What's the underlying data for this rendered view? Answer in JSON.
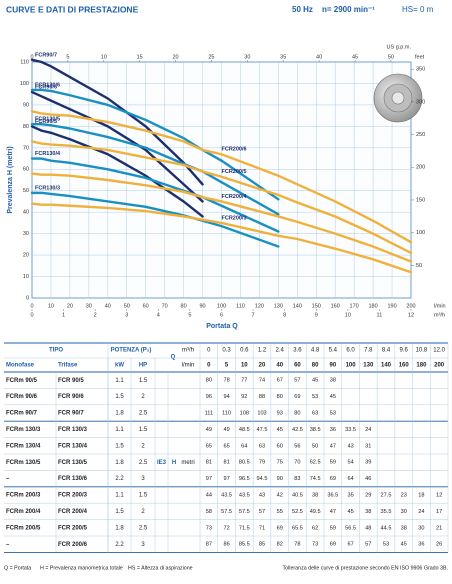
{
  "header": {
    "title": "CURVE E DATI DI PRESTAZIONE",
    "frequency": "50 Hz",
    "speed": "n= 2900 min⁻¹",
    "suction": "HS= 0 m"
  },
  "chart": {
    "type": "line",
    "y_label": "Prevalenza H (metri)",
    "x_label": "Portata Q",
    "x_unit": "l/min",
    "x2_unit": "m³/h",
    "top_unit": "US g.p.m.",
    "right_unit": "feet",
    "xlim": [
      0,
      200
    ],
    "xticks": [
      0,
      10,
      20,
      30,
      40,
      50,
      60,
      70,
      80,
      90,
      100,
      110,
      120,
      130,
      140,
      150,
      160,
      170,
      180,
      190,
      200
    ],
    "ylim": [
      0,
      110
    ],
    "yticks": [
      0,
      10,
      20,
      30,
      40,
      50,
      60,
      70,
      80,
      90,
      100,
      110
    ],
    "x2lim": [
      0,
      12
    ],
    "x2ticks": [
      0,
      1,
      2,
      3,
      4,
      5,
      6,
      7,
      8,
      9,
      10,
      11,
      12
    ],
    "toplim": [
      0,
      52.8
    ],
    "topticks": [
      0,
      5,
      10,
      15,
      20,
      25,
      30,
      35,
      40,
      45,
      50
    ],
    "y2lim": [
      0,
      361
    ],
    "y2ticks": [
      50,
      100,
      150,
      200,
      250,
      300,
      350
    ],
    "grid": true
  },
  "table": {
    "tipo": "TIPO",
    "potenza": "POTENZA (P₂)",
    "mono": "Monofase",
    "tri": "Trifase",
    "kw": "kW",
    "hp": "HP",
    "q": "Q",
    "q_m3h_unit": "m³/h",
    "q_lmin_unit": "l/min",
    "ie3": "IE3",
    "h": "H",
    "h_unit": "metri",
    "q_m3h": [
      0,
      0.3,
      0.6,
      1.2,
      2.4,
      3.6,
      4.8,
      5.4,
      {
        "value": 6,
        "label": "6.0"
      },
      7.8,
      8.4,
      9.6,
      10.8,
      {
        "value": 12,
        "label": "12.0"
      }
    ],
    "q_lmin": [
      0,
      5,
      10,
      20,
      40,
      60,
      80,
      90,
      100,
      130,
      140,
      160,
      180,
      200
    ],
    "rows": [
      {
        "mono": "FCRm 90/5",
        "tri": "FCR 90/5",
        "kw": 1.1,
        "hp": 1.5,
        "h": [
          80,
          78,
          77,
          74,
          67,
          57,
          45,
          38
        ],
        "curve": "FCR90/5",
        "color": "#1c2f6e"
      },
      {
        "mono": "FCRm 90/6",
        "tri": "FCR 90/6",
        "kw": 1.5,
        "hp": 2,
        "h": [
          96,
          94,
          92,
          88,
          80,
          69,
          53,
          45
        ],
        "curve": "FCR90/6",
        "color": "#1c2f6e"
      },
      {
        "mono": "FCRm 90/7",
        "tri": "FCR 90/7",
        "kw": 1.8,
        "hp": 2.5,
        "h": [
          111,
          110,
          108,
          103,
          93,
          80,
          63,
          53
        ],
        "curve": "FCR90/7",
        "color": "#1c2f6e"
      },
      {
        "mono": "FCRm 130/3",
        "tri": "FCR 130/3",
        "kw": 1.1,
        "hp": 1.5,
        "h": [
          49,
          49,
          48.5,
          47.5,
          45,
          42.5,
          38.5,
          36,
          33.5,
          24
        ],
        "curve": "FCR130/3",
        "color": "#1a8fc2"
      },
      {
        "mono": "FCRm 130/4",
        "tri": "FCR 130/4",
        "kw": 1.5,
        "hp": 2,
        "h": [
          65,
          65,
          64,
          63,
          60,
          56,
          50,
          47,
          43,
          31
        ],
        "curve": "FCR130/4",
        "color": "#1a8fc2"
      },
      {
        "mono": "FCRm 130/5",
        "tri": "FCR 130/5",
        "kw": 1.8,
        "hp": 2.5,
        "h": [
          81,
          81,
          80.5,
          79,
          75,
          70,
          62.5,
          59,
          54,
          39
        ],
        "curve": "FCR130/5",
        "color": "#1a8fc2"
      },
      {
        "mono": "–",
        "tri": "FCR 130/6",
        "kw": 2.2,
        "hp": 3,
        "h": [
          97,
          97,
          96.5,
          94.5,
          90,
          83,
          74.5,
          69,
          64,
          46
        ],
        "curve": "FCR130/6",
        "color": "#1a8fc2"
      },
      {
        "mono": "FCRm 200/3",
        "tri": "FCR 200/3",
        "kw": 1.1,
        "hp": 1.5,
        "h": [
          44,
          43.5,
          43.5,
          43,
          42,
          40.5,
          38,
          36.5,
          35,
          29,
          27.5,
          23,
          18,
          12
        ],
        "curve": "FCR200/3",
        "color": "#f0b13c"
      },
      {
        "mono": "FCRm 200/4",
        "tri": "FCR 200/4",
        "kw": 1.5,
        "hp": 2,
        "h": [
          58,
          57.5,
          57.5,
          57,
          55,
          52.5,
          49.5,
          47,
          45,
          38,
          35.5,
          30,
          24,
          17
        ],
        "curve": "FCR200/4",
        "color": "#f0b13c"
      },
      {
        "mono": "FCRm 200/5",
        "tri": "FCR 200/5",
        "kw": 1.8,
        "hp": 2.5,
        "h": [
          73,
          72,
          71.5,
          71,
          69,
          65.5,
          62,
          59,
          56.5,
          48,
          44.5,
          38,
          30,
          21
        ],
        "curve": "FCR200/5",
        "color": "#f0b13c"
      },
      {
        "mono": "–",
        "tri": "FCR 200/6",
        "kw": 2.2,
        "hp": 3,
        "h": [
          87,
          86,
          85.5,
          85,
          82,
          78,
          73,
          69,
          67,
          57,
          53,
          45,
          36,
          26
        ],
        "curve": "FCR200/6",
        "color": "#f0b13c"
      }
    ]
  },
  "footer": {
    "q": "Q = Portata",
    "h": "H = Prevalenza manometrica totale",
    "hs": "HS = Altezza di aspirazione",
    "tolerance": "Tolleranza delle curve di prestazione secondo EN ISO 9906 Grado 3B."
  }
}
